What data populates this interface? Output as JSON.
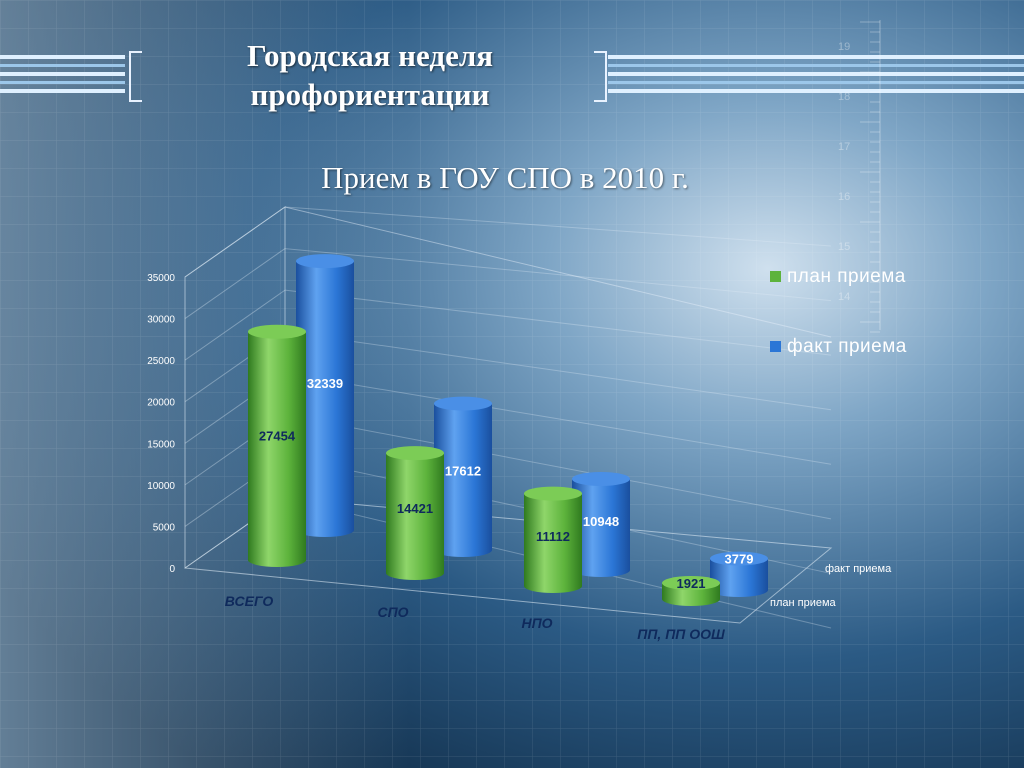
{
  "slide": {
    "title_line1": "Городская неделя",
    "title_line2": "профориентации",
    "subtitle": "Прием в ГОУ СПО в 2010 г.",
    "ruler_numbers": [
      "19",
      "18",
      "17",
      "16",
      "15",
      "14"
    ]
  },
  "colors": {
    "plan": "#5db33c",
    "fact": "#2b76d6",
    "axis_text": "#0f2a5c"
  },
  "chart_data": {
    "type": "bar",
    "categories": [
      "ВСЕГО",
      "СПО",
      "НПО",
      "ПП, ПП ООШ"
    ],
    "series": [
      {
        "name": "план приема",
        "values": [
          27454,
          14421,
          11112,
          1921
        ]
      },
      {
        "name": "факт приема",
        "values": [
          32339,
          17612,
          10948,
          3779
        ]
      }
    ],
    "ylim": [
      0,
      35000
    ],
    "yticks": [
      "0",
      "5000",
      "10000",
      "15000",
      "20000",
      "25000",
      "30000",
      "35000"
    ],
    "depth_labels": [
      "факт приема",
      "план приема"
    ],
    "legend_position": "right",
    "grid": true
  }
}
